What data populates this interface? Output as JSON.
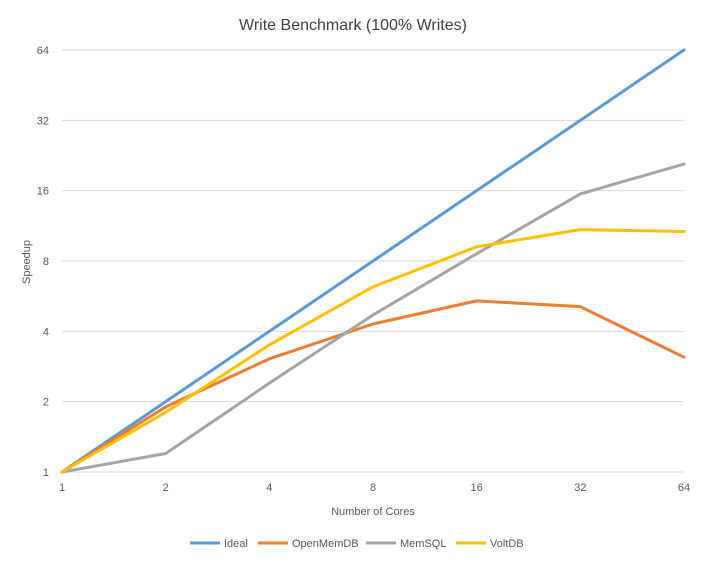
{
  "chart_data": {
    "type": "line",
    "title": "Write Benchmark (100% Writes)",
    "xlabel": "Number of Cores",
    "ylabel": "Speedup",
    "x": [
      1,
      2,
      4,
      8,
      16,
      32,
      64
    ],
    "x_tick_labels": [
      "1",
      "2",
      "4",
      "8",
      "16",
      "32",
      "64"
    ],
    "y_ticks": [
      1,
      2,
      4,
      8,
      16,
      32,
      64
    ],
    "y_tick_labels": [
      "1",
      "2",
      "4",
      "8",
      "16",
      "32",
      "64"
    ],
    "x_scale": "log2",
    "y_scale": "log2",
    "xlim": [
      1,
      64
    ],
    "ylim": [
      1,
      64
    ],
    "grid": "horizontal",
    "legend_position": "bottom",
    "series": [
      {
        "name": "Ideal",
        "color": "#5b9bd5",
        "values": [
          1,
          2,
          4,
          8,
          16,
          32,
          64
        ]
      },
      {
        "name": "OpenMemDB",
        "color": "#ed7d31",
        "values": [
          1,
          1.9,
          3.05,
          4.3,
          5.4,
          5.1,
          3.1
        ]
      },
      {
        "name": "MemSQL",
        "color": "#a5a5a5",
        "values": [
          1,
          1.2,
          2.4,
          4.7,
          8.6,
          15.5,
          20.8
        ]
      },
      {
        "name": "VoltDB",
        "color": "#ffc000",
        "values": [
          1,
          1.8,
          3.5,
          6.2,
          9.2,
          10.9,
          10.7
        ]
      }
    ]
  }
}
